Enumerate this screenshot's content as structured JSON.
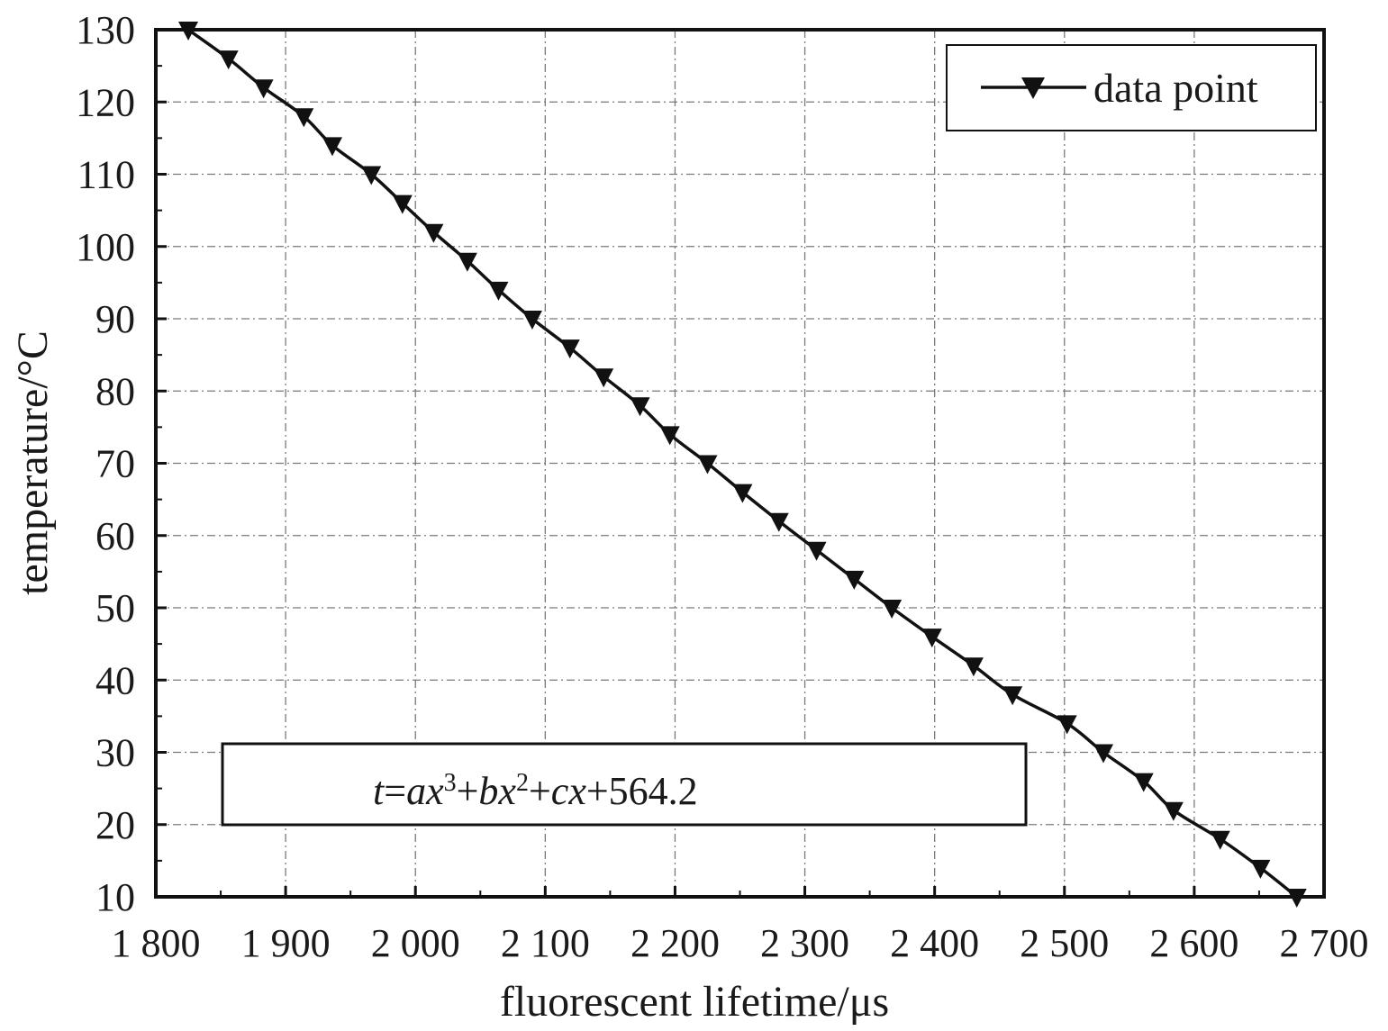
{
  "chart_data": {
    "type": "line",
    "xlabel": "fluorescent lifetime/μs",
    "ylabel": "temperature/°C",
    "xlim": [
      1800,
      2700
    ],
    "ylim": [
      10,
      130
    ],
    "x_ticks": [
      "1 800",
      "1 900",
      "2 000",
      "2 100",
      "2 200",
      "2 300",
      "2 400",
      "2 500",
      "2 600",
      "2 700"
    ],
    "y_ticks": [
      "10",
      "20",
      "30",
      "40",
      "50",
      "60",
      "70",
      "80",
      "90",
      "100",
      "110",
      "120",
      "130"
    ],
    "grid": true,
    "legend_position": "top-right",
    "marker": "triangle-down",
    "line_color": "#111111",
    "series": [
      {
        "name": "data point",
        "points": [
          [
            1825,
            130
          ],
          [
            1856,
            126
          ],
          [
            1883,
            122
          ],
          [
            1914,
            118
          ],
          [
            1936,
            114
          ],
          [
            1966,
            110
          ],
          [
            1990,
            106
          ],
          [
            2014,
            102
          ],
          [
            2040,
            98
          ],
          [
            2064,
            94
          ],
          [
            2090,
            90
          ],
          [
            2119,
            86
          ],
          [
            2145,
            82
          ],
          [
            2173,
            78
          ],
          [
            2196,
            74
          ],
          [
            2225,
            70
          ],
          [
            2252,
            66
          ],
          [
            2280,
            62
          ],
          [
            2309,
            58
          ],
          [
            2338,
            54
          ],
          [
            2367,
            50
          ],
          [
            2398,
            46
          ],
          [
            2430,
            42
          ],
          [
            2460,
            38
          ],
          [
            2502,
            34
          ],
          [
            2530,
            30
          ],
          [
            2561,
            26
          ],
          [
            2584,
            22
          ],
          [
            2620,
            18
          ],
          [
            2651,
            14
          ],
          [
            2679,
            10
          ]
        ]
      }
    ],
    "annotation": {
      "t": "t",
      "eq1": "=",
      "a": "a",
      "x1": "x",
      "sup3": "3",
      "plus1": "+",
      "b": "b",
      "x2": "x",
      "sup2": "2",
      "plus2": "+",
      "c": "c",
      "x3": "x",
      "tail": "+564.2"
    }
  }
}
